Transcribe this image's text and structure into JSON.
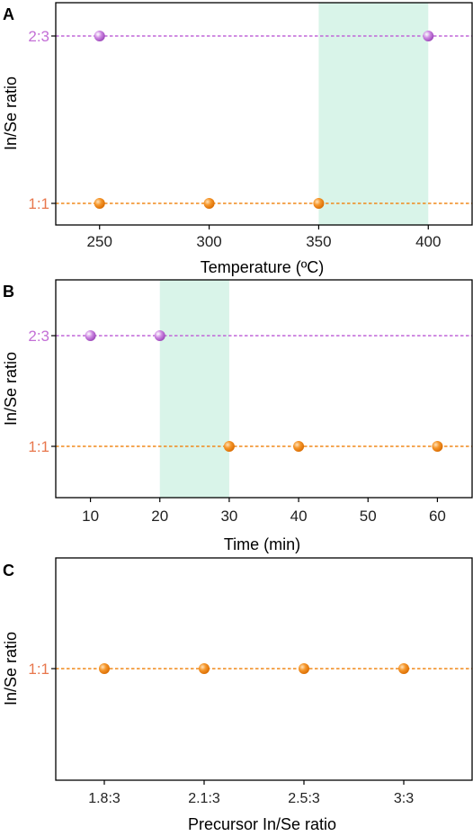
{
  "colors": {
    "purple": "#c066d8",
    "orange": "#f08a1c",
    "highlight": "#d9f4e9",
    "axis": "#000000",
    "tick_label_23": "#c36fd6",
    "tick_label_11": "#e8774d"
  },
  "chart_data": [
    {
      "type": "scatter",
      "panel_label": "A",
      "xlabel": "Temperature (ºC)",
      "ylabel": "In/Se ratio",
      "xlim": [
        230,
        420
      ],
      "xticks": [
        "250",
        "300",
        "350",
        "400"
      ],
      "xtick_values": [
        250,
        300,
        350,
        400
      ],
      "y_levels": [
        "2:3",
        "1:1"
      ],
      "shaded_region": [
        350,
        400
      ],
      "grid": false,
      "series": [
        {
          "level": "2:3",
          "color": "purple",
          "x": [
            250,
            400
          ]
        },
        {
          "level": "1:1",
          "color": "orange",
          "x": [
            250,
            300,
            350
          ]
        }
      ]
    },
    {
      "type": "scatter",
      "panel_label": "B",
      "xlabel": "Time (min)",
      "ylabel": "In/Se ratio",
      "xlim": [
        5,
        65
      ],
      "xticks": [
        "10",
        "20",
        "30",
        "40",
        "50",
        "60"
      ],
      "xtick_values": [
        10,
        20,
        30,
        40,
        50,
        60
      ],
      "y_levels": [
        "2:3",
        "1:1"
      ],
      "shaded_region": [
        20,
        30
      ],
      "grid": false,
      "series": [
        {
          "level": "2:3",
          "color": "purple",
          "x": [
            10,
            20
          ]
        },
        {
          "level": "1:1",
          "color": "orange",
          "x": [
            30,
            40,
            60
          ]
        }
      ]
    },
    {
      "type": "scatter",
      "panel_label": "C",
      "xlabel": "Precursor In/Se ratio",
      "ylabel": "In/Se ratio",
      "categories": [
        "1.8:3",
        "2.1:3",
        "2.5:3",
        "3:3"
      ],
      "y_levels": [
        "1:1"
      ],
      "grid": false,
      "series": [
        {
          "level": "1:1",
          "color": "orange",
          "x": [
            "1.8:3",
            "2.1:3",
            "2.5:3",
            "3:3"
          ]
        }
      ]
    }
  ]
}
